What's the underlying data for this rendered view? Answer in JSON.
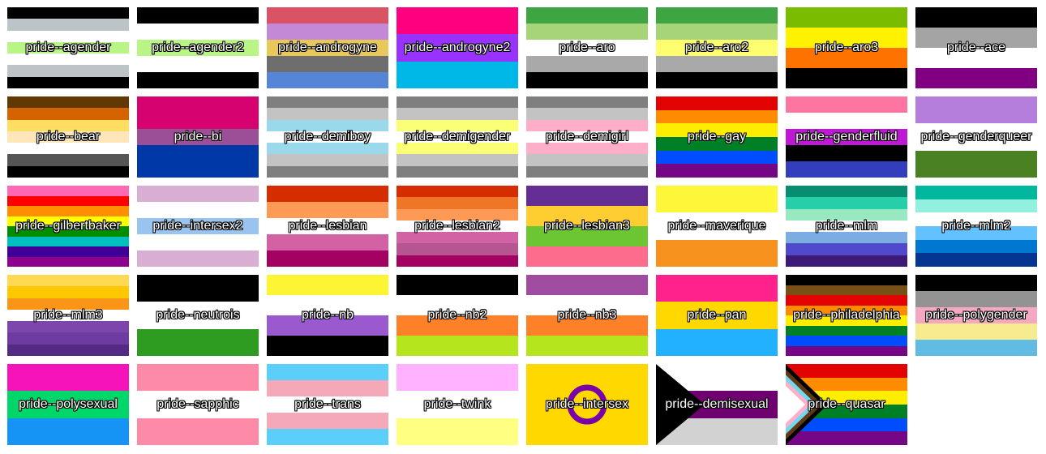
{
  "flags": [
    {
      "label": "pride--agender",
      "stripes": [
        "#000000",
        "#bcc4c7",
        "#ffffff",
        "#b7f684",
        "#ffffff",
        "#bcc4c7",
        "#000000"
      ]
    },
    {
      "label": "pride--agender2",
      "stripes": [
        "#000000",
        "#ffffff",
        "#b9f584",
        "#ffffff",
        "#000000"
      ]
    },
    {
      "label": "pride--androgyne",
      "stripes": [
        "#d95365",
        "#c388d6",
        "#e8c85a",
        "#6e6e6e",
        "#5684d6"
      ]
    },
    {
      "label": "pride--androgyne2",
      "stripes": [
        "#fe007f",
        "#9832ff",
        "#00b8e7"
      ]
    },
    {
      "label": "pride--aro",
      "stripes": [
        "#3da542",
        "#a7d379",
        "#ffffff",
        "#a9a9a9",
        "#000000"
      ]
    },
    {
      "label": "pride--aro2",
      "stripes": [
        "#3da542",
        "#a7d379",
        "#fefe6e",
        "#a9a9a9",
        "#000000"
      ]
    },
    {
      "label": "pride--aro3",
      "stripes": [
        "#7abd00",
        "#fef200",
        "#fe7300",
        "#000000"
      ]
    },
    {
      "label": "pride--ace",
      "stripes": [
        "#000000",
        "#a4a4a4",
        "#ffffff",
        "#810081"
      ]
    },
    {
      "label": "pride--bear",
      "stripes": [
        "#623804",
        "#d56300",
        "#fedd63",
        "#fee6b8",
        "#ffffff",
        "#555555",
        "#000000"
      ]
    },
    {
      "label": "pride--bi",
      "stripes": [
        "#d60270",
        "#d60270",
        "#9b4f96",
        "#0038a8",
        "#0038a8"
      ]
    },
    {
      "label": "pride--demiboy",
      "stripes": [
        "#7f7f7f",
        "#c3c3c3",
        "#9ad9eb",
        "#ffffff",
        "#9ad9eb",
        "#c3c3c3",
        "#7f7f7f"
      ]
    },
    {
      "label": "pride--demigender",
      "stripes": [
        "#7f7f7f",
        "#c3c3c3",
        "#fbff75",
        "#ffffff",
        "#fbff75",
        "#c3c3c3",
        "#7f7f7f"
      ]
    },
    {
      "label": "pride--demigirl",
      "stripes": [
        "#7f7f7f",
        "#c3c3c3",
        "#ffaec9",
        "#ffffff",
        "#ffaec9",
        "#c3c3c3",
        "#7f7f7f"
      ]
    },
    {
      "label": "pride--gay",
      "stripes": [
        "#e40303",
        "#ff8c00",
        "#ffed00",
        "#008026",
        "#004dff",
        "#750787"
      ]
    },
    {
      "label": "pride--genderfluid",
      "stripes": [
        "#ff75a2",
        "#ffffff",
        "#be18d6",
        "#000000",
        "#333ebd"
      ]
    },
    {
      "label": "pride--genderqueer",
      "stripes": [
        "#b57edc",
        "#ffffff",
        "#4a8123"
      ]
    },
    {
      "label": "pride--gilbertbaker",
      "stripes": [
        "#ff69b4",
        "#ff0000",
        "#ff8e00",
        "#ffff00",
        "#008e00",
        "#00c0c0",
        "#400098",
        "#8e008e"
      ]
    },
    {
      "label": "pride--intersex2",
      "stripes": [
        "#d8aed2",
        "#ffffff",
        "#99c4ef",
        "#ffffff",
        "#d8aed2"
      ]
    },
    {
      "label": "pride--lesbian",
      "stripes": [
        "#d52d00",
        "#ff9a56",
        "#ffffff",
        "#d362a4",
        "#a30262"
      ]
    },
    {
      "label": "pride--lesbian2",
      "stripes": [
        "#d52d00",
        "#ef7627",
        "#ff9a56",
        "#ffffff",
        "#d162a4",
        "#b55690",
        "#a30262"
      ]
    },
    {
      "label": "pride--lesbian3",
      "stripes": [
        "#652e94",
        "#fecd31",
        "#6cc533",
        "#fe6c8d"
      ]
    },
    {
      "label": "pride--maverique",
      "stripes": [
        "#fef639",
        "#ffffff",
        "#f7921e"
      ]
    },
    {
      "label": "pride--mlm",
      "stripes": [
        "#078d70",
        "#26ceaa",
        "#98e8c1",
        "#ffffff",
        "#7bade2",
        "#5049cc",
        "#3d1a78"
      ]
    },
    {
      "label": "pride--mlm2",
      "stripes": [
        "#01b79e",
        "#92f0df",
        "#ffffff",
        "#64c1ff",
        "#0077d0",
        "#043691"
      ]
    },
    {
      "label": "pride--mlm3",
      "stripes": [
        "#fed953",
        "#fdc800",
        "#fb9517",
        "#ffffff",
        "#7d46ad",
        "#6e3ba1",
        "#552a85"
      ]
    },
    {
      "label": "pride--neutrois",
      "stripes": [
        "#000000",
        "#ffffff",
        "#2e9b21"
      ]
    },
    {
      "label": "pride--nb",
      "stripes": [
        "#fdf433",
        "#ffffff",
        "#9b59d0",
        "#000000"
      ]
    },
    {
      "label": "pride--nb2",
      "stripes": [
        "#000000",
        "#ffffff",
        "#fe8129",
        "#b5e61d"
      ]
    },
    {
      "label": "pride--nb3",
      "stripes": [
        "#a04ca1",
        "#ffffff",
        "#fe8129",
        "#b5e61d"
      ]
    },
    {
      "label": "pride--pan",
      "stripes": [
        "#ff218c",
        "#ffd800",
        "#21b1ff"
      ]
    },
    {
      "label": "pride--philadelphia",
      "stripes": [
        "#000000",
        "#784f17",
        "#e40303",
        "#ff8c00",
        "#ffed00",
        "#008026",
        "#004dff",
        "#750787"
      ]
    },
    {
      "label": "pride--polygender",
      "stripes": [
        "#000000",
        "#939393",
        "#f6a8c2",
        "#f6ec8f",
        "#62bbe3"
      ]
    },
    {
      "label": "pride--polysexual",
      "stripes": [
        "#f614ba",
        "#01d66a",
        "#1594f6"
      ]
    },
    {
      "label": "pride--sapphic",
      "stripes": [
        "#fd8ba8",
        "#ffffff",
        "#fd8ba8"
      ]
    },
    {
      "label": "pride--trans",
      "stripes": [
        "#5bcefa",
        "#f5a9b8",
        "#ffffff",
        "#f5a9b8",
        "#5bcefa"
      ]
    },
    {
      "label": "pride--twink",
      "stripes": [
        "#ffb2ff",
        "#ffffff",
        "#ffff81"
      ]
    },
    {
      "label": "pride--intersex",
      "stripes": [
        "#ffd800"
      ],
      "special": "intersex"
    },
    {
      "label": "pride--demisexual",
      "stripes": [
        "#ffffff",
        "#6e0070",
        "#d2d2d2"
      ],
      "special": "demisexual"
    },
    {
      "label": "pride--quasar",
      "stripes": [
        "#e40303",
        "#ff8c00",
        "#ffed00",
        "#008026",
        "#004dff",
        "#750787"
      ],
      "special": "quasar"
    }
  ]
}
